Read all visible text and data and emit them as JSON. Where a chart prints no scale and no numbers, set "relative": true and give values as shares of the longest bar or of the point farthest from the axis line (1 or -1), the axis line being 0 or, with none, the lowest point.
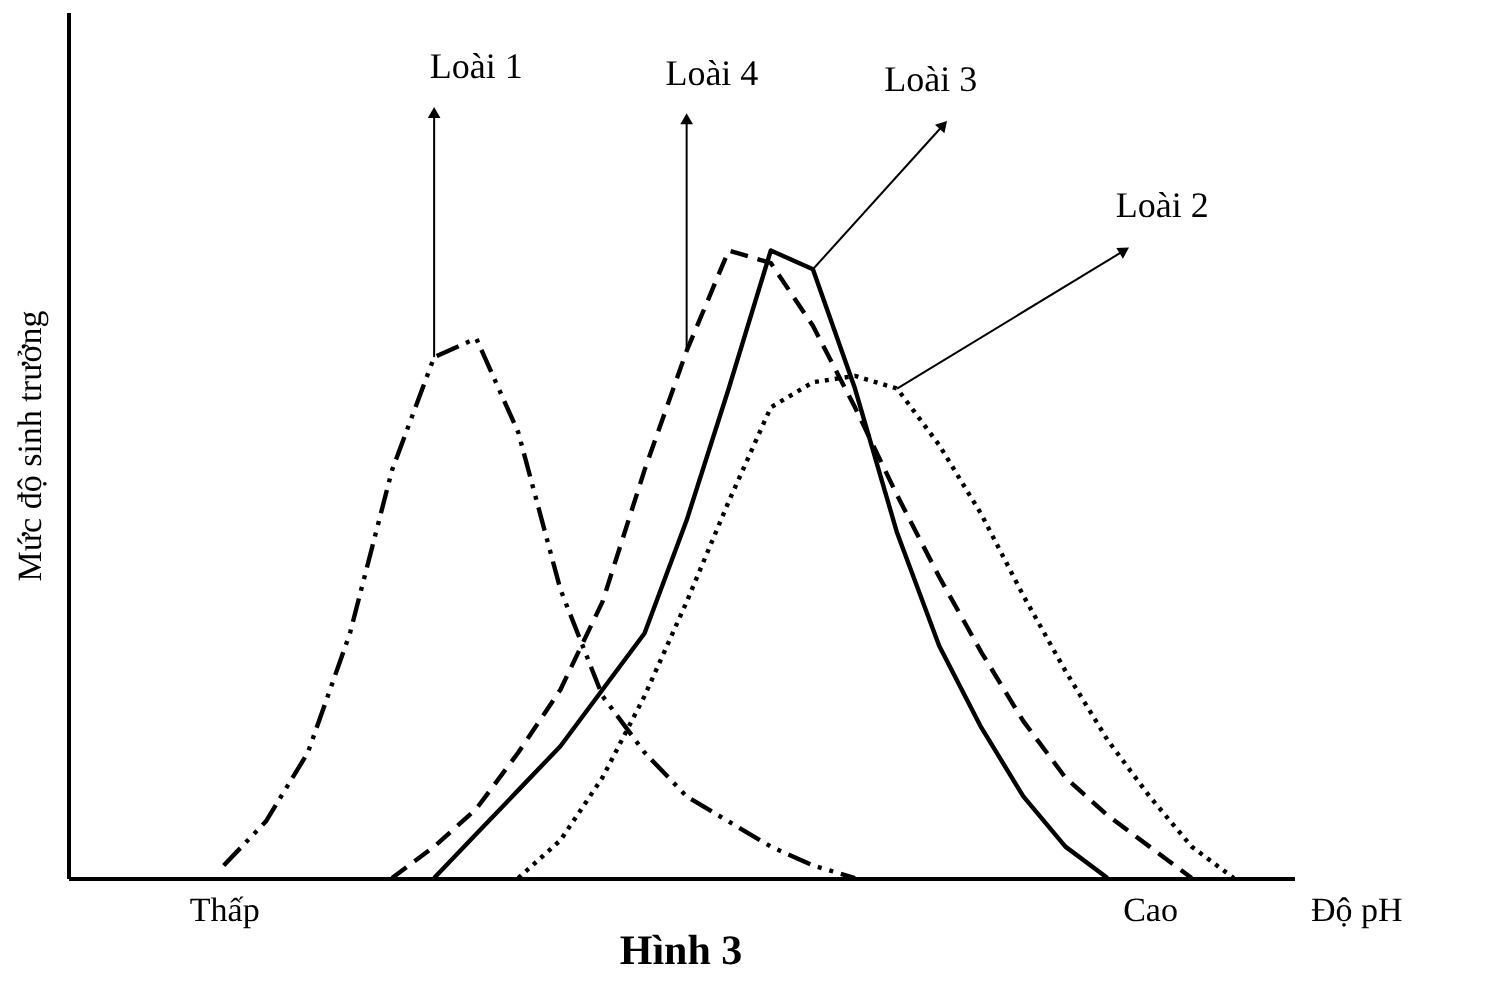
{
  "chart_data": {
    "type": "line",
    "title": "Hình 3",
    "xlabel": "Độ pH",
    "ylabel": "Mức độ sinh trưởng",
    "relative": true,
    "legend": false,
    "grid": false,
    "categories": [
      null,
      "Thấp",
      null,
      null,
      null,
      null,
      null,
      null,
      null,
      null,
      null,
      null,
      null,
      null,
      null,
      null,
      null,
      null,
      null,
      null,
      null,
      null,
      null,
      "Cao",
      null,
      null,
      null
    ],
    "series": [
      {
        "name": "Loài 1",
        "color": "#000000",
        "line_style": "dashdot",
        "values": [
          null,
          0.02,
          0.09,
          0.2,
          0.39,
          0.65,
          0.83,
          0.86,
          0.71,
          0.46,
          0.29,
          0.2,
          0.13,
          0.09,
          0.05,
          0.02,
          0,
          null,
          null,
          null,
          null,
          null,
          null,
          null,
          null,
          null,
          null
        ]
      },
      {
        "name": "Loài 2",
        "color": "#000000",
        "line_style": "dotted",
        "values": [
          null,
          null,
          null,
          null,
          null,
          null,
          null,
          null,
          0,
          0.06,
          0.16,
          0.29,
          0.44,
          0.6,
          0.75,
          0.79,
          0.8,
          0.78,
          0.69,
          0.58,
          0.45,
          0.33,
          0.22,
          0.13,
          0.05,
          0,
          null
        ]
      },
      {
        "name": "Loài 3",
        "color": "#000000",
        "line_style": "solid",
        "values": [
          null,
          null,
          null,
          null,
          null,
          null,
          0,
          0.07,
          0.14,
          0.21,
          0.3,
          0.39,
          0.57,
          0.78,
          1.0,
          0.97,
          0.78,
          0.55,
          0.37,
          0.24,
          0.13,
          0.05,
          0,
          null,
          null,
          null,
          null
        ]
      },
      {
        "name": "Loài 4",
        "color": "#000000",
        "line_style": "dashed",
        "values": [
          null,
          null,
          null,
          null,
          null,
          0,
          0.05,
          0.11,
          0.2,
          0.3,
          0.44,
          0.65,
          0.84,
          1.0,
          0.98,
          0.88,
          0.75,
          0.61,
          0.48,
          0.36,
          0.25,
          0.16,
          0.1,
          0.05,
          0,
          null,
          null
        ]
      }
    ]
  }
}
